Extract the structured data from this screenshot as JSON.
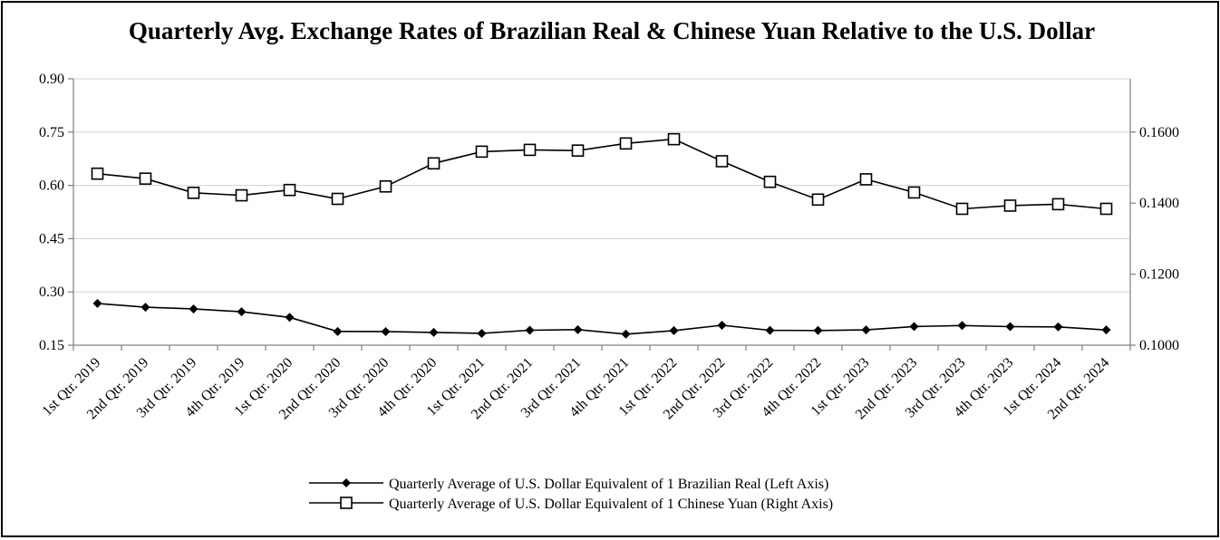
{
  "chart_data": {
    "type": "line",
    "title": "Quarterly Avg. Exchange Rates of Brazilian Real & Chinese Yuan Relative to the U.S. Dollar",
    "categories": [
      "1st Qtr. 2019",
      "2nd Qtr. 2019",
      "3rd Qtr. 2019",
      "4th Qtr. 2019",
      "1st Qtr. 2020",
      "2nd Qtr. 2020",
      "3rd Qtr. 2020",
      "4th Qtr. 2020",
      "1st Qtr. 2021",
      "2nd Qtr. 2021",
      "3rd Qtr. 2021",
      "4th Qtr. 2021",
      "1st Qtr. 2022",
      "2nd Qtr. 2022",
      "3rd Qtr. 2022",
      "4th Qtr. 2022",
      "1st Qtr. 2023",
      "2nd Qtr. 2023",
      "3rd Qtr. 2023",
      "4th Qtr. 2023",
      "1st Qtr. 2024",
      "2nd Qtr. 2024"
    ],
    "left_axis": {
      "range": [
        0.15,
        0.9
      ],
      "ticks": [
        "0.15",
        "0.30",
        "0.45",
        "0.60",
        "0.75",
        "0.90"
      ],
      "tick_values": [
        0.15,
        0.3,
        0.45,
        0.6,
        0.75,
        0.9
      ]
    },
    "right_axis": {
      "range": [
        0.1,
        0.175
      ],
      "ticks": [
        "0.1000",
        "0.1200",
        "0.1400",
        "0.1600"
      ],
      "tick_values": [
        0.1,
        0.12,
        0.14,
        0.16
      ]
    },
    "series": [
      {
        "name": "Quarterly Average of U.S. Dollar Equivalent of 1 Brazilian Real (Left Axis)",
        "axis": "left",
        "marker": "diamond",
        "values": [
          0.2676,
          0.2568,
          0.2522,
          0.2442,
          0.2283,
          0.1887,
          0.1884,
          0.1859,
          0.1833,
          0.1922,
          0.1938,
          0.1811,
          0.191,
          0.2062,
          0.1919,
          0.1914,
          0.1932,
          0.2025,
          0.2054,
          0.2023,
          0.2016,
          0.1929
        ]
      },
      {
        "name": "Quarterly Average of U.S. Dollar Equivalent of 1 Chinese Yuan (Right Axis)",
        "axis": "right",
        "marker": "square",
        "values": [
          0.1483,
          0.1469,
          0.1429,
          0.1422,
          0.1437,
          0.1412,
          0.1447,
          0.1512,
          0.1545,
          0.155,
          0.1548,
          0.1568,
          0.158,
          0.1518,
          0.146,
          0.141,
          0.1467,
          0.143,
          0.1384,
          0.1393,
          0.1397,
          0.1384
        ]
      }
    ],
    "grid": true,
    "legend_position": "bottom-center"
  }
}
